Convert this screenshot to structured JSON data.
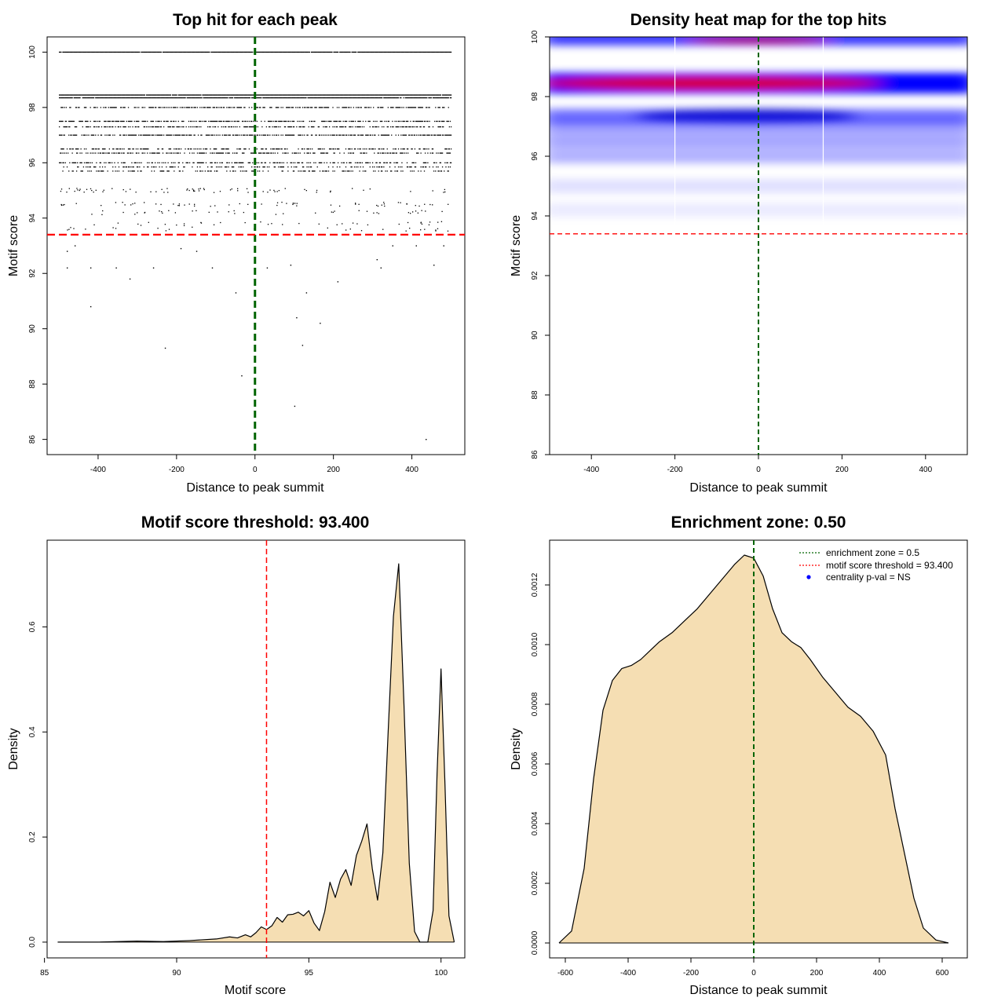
{
  "chart_data": [
    {
      "panel": "top-left",
      "type": "scatter",
      "title": "Top hit for each peak",
      "xlabel": "Distance to peak summit",
      "ylabel": "Motif score",
      "xlim": [
        -530,
        535
      ],
      "ylim": [
        85.45,
        100.55
      ],
      "xticks": [
        -400,
        -200,
        0,
        200,
        400
      ],
      "yticks": [
        86,
        88,
        90,
        92,
        94,
        96,
        98,
        100
      ],
      "score_bands": [
        100,
        98.45,
        98.35,
        98.0,
        97.5,
        97.3,
        97.0,
        96.5,
        96.35,
        96.0,
        95.85,
        95.7
      ],
      "sparse_points": [
        [
          -480,
          92.2
        ],
        [
          -420,
          92.2
        ],
        [
          -355,
          92.2
        ],
        [
          -320,
          91.8
        ],
        [
          -420,
          90.8
        ],
        [
          -230,
          89.3
        ],
        [
          -260,
          92.2
        ],
        [
          -110,
          92.2
        ],
        [
          -50,
          91.3
        ],
        [
          -35,
          88.3
        ],
        [
          100,
          87.2
        ],
        [
          105,
          90.4
        ],
        [
          120,
          89.4
        ],
        [
          130,
          91.3
        ],
        [
          165,
          90.2
        ],
        [
          210,
          91.7
        ],
        [
          310,
          92.5
        ],
        [
          320,
          92.2
        ],
        [
          435,
          86.0
        ],
        [
          455,
          92.3
        ],
        [
          30,
          92.2
        ],
        [
          90,
          92.3
        ],
        [
          -150,
          92.8
        ],
        [
          -190,
          92.9
        ],
        [
          -480,
          92.8
        ],
        [
          -460,
          93.0
        ],
        [
          350,
          93.0
        ],
        [
          410,
          93.0
        ],
        [
          480,
          93.0
        ]
      ],
      "vline": {
        "x": 0,
        "color": "#006400"
      },
      "hline": {
        "y": 93.4,
        "color": "#ff0000"
      }
    },
    {
      "panel": "top-right",
      "type": "heatmap",
      "title": "Density heat map for the top hits",
      "xlabel": "Distance to peak summit",
      "ylabel": "Motif score",
      "xlim": [
        -500,
        500
      ],
      "ylim": [
        86,
        100
      ],
      "xticks": [
        -400,
        -200,
        0,
        200,
        400
      ],
      "yticks": [
        86,
        88,
        90,
        92,
        94,
        96,
        98,
        100
      ],
      "density_bands": [
        {
          "y": 100.0,
          "intensity": 0.75
        },
        {
          "y": 98.45,
          "intensity": 1.0
        },
        {
          "y": 97.35,
          "intensity": 0.55
        },
        {
          "y": 97.0,
          "intensity": 0.4
        },
        {
          "y": 96.5,
          "intensity": 0.35
        },
        {
          "y": 96.0,
          "intensity": 0.3
        },
        {
          "y": 95.0,
          "intensity": 0.12
        },
        {
          "y": 94.2,
          "intensity": 0.08
        }
      ],
      "vline": {
        "x": 0,
        "color": "#006400"
      },
      "hline": {
        "y": 93.4,
        "color": "#ff0000"
      }
    },
    {
      "panel": "bottom-left",
      "type": "area",
      "title": "Motif score threshold: 93.400",
      "xlabel": "Motif score",
      "ylabel": "Density",
      "xlim": [
        85.1,
        100.9
      ],
      "ylim": [
        -0.03,
        0.765
      ],
      "xticks": [
        85,
        90,
        95,
        100
      ],
      "yticks": [
        0.0,
        0.2,
        0.4,
        0.6
      ],
      "x": [
        85.5,
        87.0,
        88.5,
        89.5,
        90.5,
        91.5,
        92.0,
        92.3,
        92.6,
        92.8,
        93.0,
        93.2,
        93.4,
        93.6,
        93.8,
        94.0,
        94.2,
        94.4,
        94.6,
        94.8,
        95.0,
        95.2,
        95.4,
        95.6,
        95.8,
        96.0,
        96.2,
        96.4,
        96.6,
        96.8,
        97.0,
        97.2,
        97.4,
        97.6,
        97.8,
        98.0,
        98.2,
        98.4,
        98.6,
        98.8,
        99.0,
        99.2,
        99.5,
        99.7,
        99.85,
        100.0,
        100.15,
        100.3,
        100.5
      ],
      "y": [
        0.0,
        0.0,
        0.002,
        0.001,
        0.003,
        0.006,
        0.01,
        0.008,
        0.014,
        0.01,
        0.018,
        0.029,
        0.024,
        0.031,
        0.047,
        0.038,
        0.052,
        0.053,
        0.057,
        0.05,
        0.06,
        0.036,
        0.022,
        0.058,
        0.114,
        0.085,
        0.12,
        0.138,
        0.108,
        0.165,
        0.192,
        0.225,
        0.14,
        0.08,
        0.17,
        0.4,
        0.62,
        0.72,
        0.45,
        0.15,
        0.02,
        0.0,
        0.0,
        0.06,
        0.32,
        0.52,
        0.3,
        0.05,
        0.0
      ],
      "vline": {
        "x": 93.4,
        "color": "#ff0000"
      },
      "fill": "#f5deb3"
    },
    {
      "panel": "bottom-right",
      "type": "area",
      "title": "Enrichment zone: 0.50",
      "xlabel": "Distance to peak summit",
      "ylabel": "Density",
      "xlim": [
        -650,
        680
      ],
      "ylim": [
        -5e-05,
        0.00135
      ],
      "xticks": [
        -600,
        -400,
        -200,
        0,
        200,
        400,
        600
      ],
      "yticks": [
        0.0,
        0.0002,
        0.0004,
        0.0006,
        0.0008,
        0.001,
        0.0012
      ],
      "x": [
        -620,
        -580,
        -540,
        -510,
        -480,
        -450,
        -420,
        -390,
        -360,
        -330,
        -300,
        -260,
        -220,
        -180,
        -140,
        -100,
        -60,
        -30,
        0,
        30,
        60,
        90,
        120,
        150,
        180,
        220,
        260,
        300,
        340,
        380,
        420,
        450,
        480,
        510,
        540,
        580,
        620
      ],
      "y": [
        0.0,
        4e-05,
        0.00025,
        0.00055,
        0.00078,
        0.00088,
        0.00092,
        0.00093,
        0.00095,
        0.00098,
        0.00101,
        0.00104,
        0.00108,
        0.00112,
        0.00117,
        0.00122,
        0.00127,
        0.0013,
        0.00129,
        0.00123,
        0.00112,
        0.00104,
        0.00101,
        0.00099,
        0.00095,
        0.00089,
        0.00084,
        0.00079,
        0.00076,
        0.00071,
        0.00063,
        0.00045,
        0.0003,
        0.00015,
        5e-05,
        1e-05,
        0.0
      ],
      "vline": {
        "x": 0,
        "color": "#006400"
      },
      "fill": "#f5deb3",
      "legend": {
        "position": "top-right",
        "entries": [
          {
            "label": "enrichment zone = 0.5",
            "color": "#006400",
            "style": "dotted-line"
          },
          {
            "label": "motif score threshold = 93.400",
            "color": "#ff0000",
            "style": "dotted-line"
          },
          {
            "label": "centrality p-val = NS",
            "color": "#0000ff",
            "style": "point"
          }
        ]
      }
    }
  ]
}
